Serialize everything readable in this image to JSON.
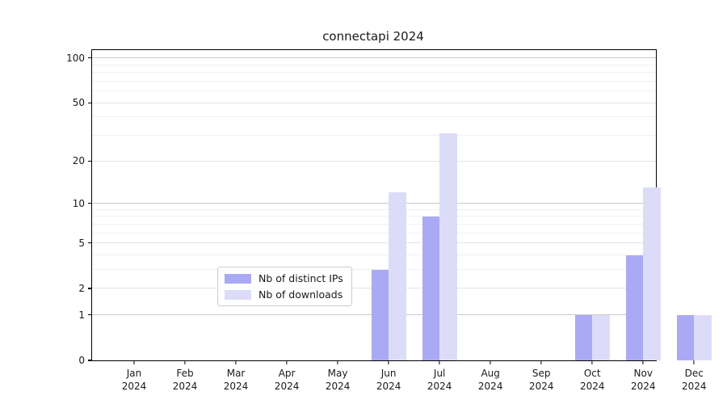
{
  "title": "connectapi 2024",
  "chart_data": {
    "type": "bar",
    "title": "connectapi 2024",
    "scale": "log1p",
    "year": "2024",
    "categories": [
      "Jan",
      "Feb",
      "Mar",
      "Apr",
      "May",
      "Jun",
      "Jul",
      "Aug",
      "Sep",
      "Oct",
      "Nov",
      "Dec"
    ],
    "series": [
      {
        "name": "Nb of distinct IPs",
        "color": "#aaaaf4",
        "values": [
          0,
          0,
          0,
          0,
          0,
          3,
          8,
          0,
          0,
          1,
          4,
          1
        ]
      },
      {
        "name": "Nb of downloads",
        "color": "#dcdcf9",
        "values": [
          0,
          0,
          0,
          0,
          0,
          12,
          31,
          0,
          0,
          1,
          13,
          1
        ]
      }
    ],
    "y_ticks": [
      0,
      1,
      2,
      5,
      10,
      20,
      50,
      100
    ],
    "y_minor_ticks": [
      3,
      4,
      6,
      7,
      8,
      9,
      30,
      40,
      60,
      70,
      80,
      90
    ],
    "ylim": [
      0,
      112
    ],
    "grid": true,
    "legend_position": "inside-bottom-center",
    "colors": {
      "major_grid": "#c9c9c9",
      "mid_grid": "#e4e4e4",
      "minor_grid": "#f0f0f0",
      "axis": "#000000",
      "text": "#1a1a1a"
    }
  }
}
